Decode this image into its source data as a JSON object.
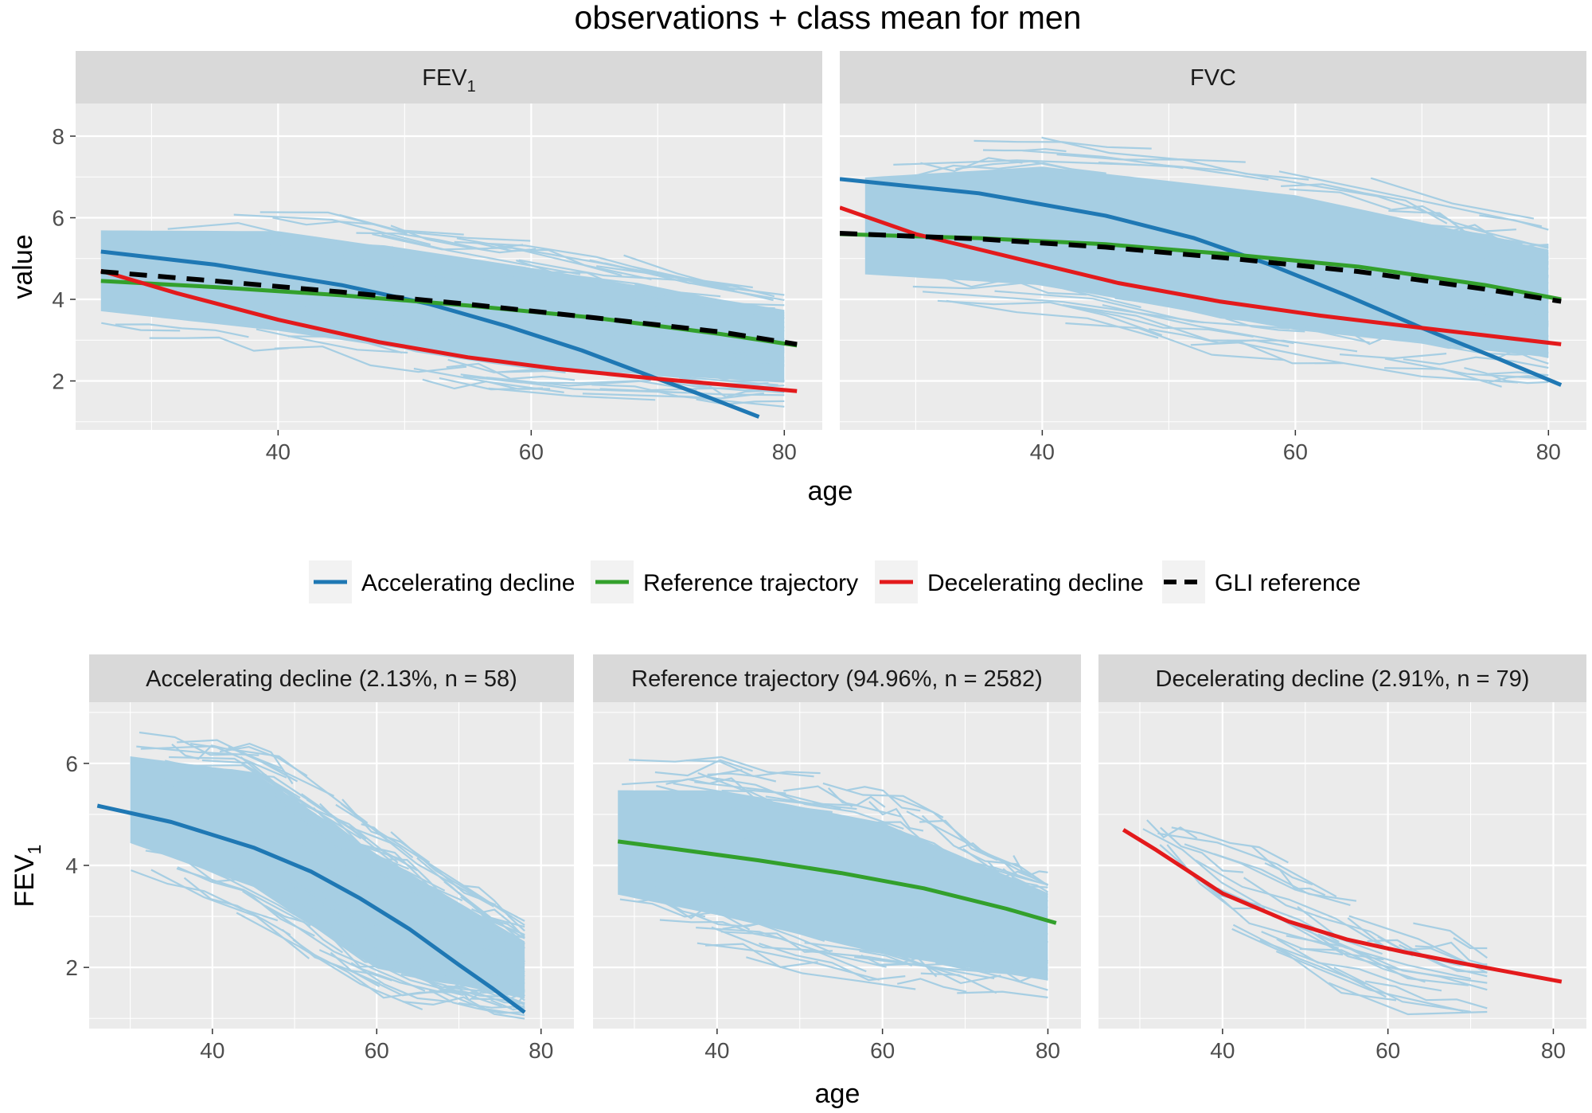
{
  "figure_title": "observations + class mean for men",
  "colors": {
    "observation": "#a6cee3",
    "accelerating": "#1f78b4",
    "reference": "#33a02c",
    "decelerating": "#e31a1c",
    "gli": "#000000",
    "panel_background": "#ebebeb",
    "strip_background": "#d9d9d9",
    "grid": "#ffffff"
  },
  "legend": [
    {
      "key": "accelerating",
      "label": "Accelerating decline",
      "style": "solid"
    },
    {
      "key": "reference",
      "label": "Reference trajectory",
      "style": "solid"
    },
    {
      "key": "decelerating",
      "label": "Decelerating decline",
      "style": "solid"
    },
    {
      "key": "gli",
      "label": "GLI reference",
      "style": "dashed"
    }
  ],
  "chart_data": [
    {
      "type": "line",
      "title": "observations + class mean for men",
      "xlabel": "age",
      "ylabel": "value",
      "facets": [
        {
          "strip": "FEV",
          "strip_subscript": "1",
          "xlim": [
            24,
            83
          ],
          "ylim": [
            0.8,
            8.8
          ],
          "xticks": [
            40,
            60,
            80
          ],
          "yticks": [
            2,
            4,
            6,
            8
          ],
          "observations": {
            "band_lower": [
              [
                26,
                3.2
              ],
              [
                40,
                2.6
              ],
              [
                60,
                1.7
              ],
              [
                80,
                1.5
              ]
            ],
            "band_upper": [
              [
                26,
                6.2
              ],
              [
                40,
                6.3
              ],
              [
                60,
                5.4
              ],
              [
                80,
                4.2
              ]
            ]
          },
          "series": [
            {
              "key": "accelerating",
              "name": "Accelerating decline",
              "x": [
                26,
                35,
                45,
                52,
                58,
                64,
                70,
                74,
                78
              ],
              "y": [
                5.17,
                4.85,
                4.35,
                3.88,
                3.35,
                2.75,
                2.05,
                1.6,
                1.12
              ]
            },
            {
              "key": "reference",
              "name": "Reference trajectory",
              "x": [
                26,
                35,
                45,
                55,
                65,
                75,
                81
              ],
              "y": [
                4.45,
                4.3,
                4.1,
                3.85,
                3.55,
                3.15,
                2.87
              ]
            },
            {
              "key": "decelerating",
              "name": "Decelerating decline",
              "x": [
                26,
                32,
                40,
                48,
                55,
                62,
                70,
                81
              ],
              "y": [
                4.7,
                4.15,
                3.5,
                2.95,
                2.58,
                2.3,
                2.05,
                1.75
              ]
            },
            {
              "key": "gli",
              "name": "GLI reference",
              "x": [
                26,
                35,
                45,
                55,
                65,
                75,
                81
              ],
              "y": [
                4.68,
                4.45,
                4.18,
                3.88,
                3.55,
                3.2,
                2.9
              ]
            }
          ]
        },
        {
          "strip": "FVC",
          "strip_subscript": "",
          "xlim": [
            24,
            83
          ],
          "ylim": [
            0.8,
            8.8
          ],
          "xticks": [
            40,
            60,
            80
          ],
          "yticks": [
            2,
            4,
            6,
            8
          ],
          "observations": {
            "band_lower": [
              [
                26,
                4.0
              ],
              [
                40,
                3.6
              ],
              [
                60,
                2.4
              ],
              [
                80,
                1.9
              ]
            ],
            "band_upper": [
              [
                26,
                7.6
              ],
              [
                40,
                8.0
              ],
              [
                60,
                7.4
              ],
              [
                80,
                5.9
              ]
            ]
          },
          "series": [
            {
              "key": "accelerating",
              "name": "Accelerating decline",
              "x": [
                24,
                35,
                45,
                52,
                58,
                64,
                70,
                76,
                81
              ],
              "y": [
                6.95,
                6.6,
                6.05,
                5.5,
                4.85,
                4.1,
                3.3,
                2.55,
                1.9
              ]
            },
            {
              "key": "reference",
              "name": "Reference trajectory",
              "x": [
                24,
                35,
                45,
                55,
                65,
                75,
                81
              ],
              "y": [
                5.6,
                5.5,
                5.35,
                5.1,
                4.8,
                4.35,
                4.0
              ]
            },
            {
              "key": "decelerating",
              "name": "Decelerating decline",
              "x": [
                24,
                30,
                38,
                46,
                54,
                62,
                70,
                81
              ],
              "y": [
                6.25,
                5.6,
                5.0,
                4.4,
                3.95,
                3.6,
                3.3,
                2.9
              ]
            },
            {
              "key": "gli",
              "name": "GLI reference",
              "x": [
                24,
                35,
                45,
                55,
                65,
                75,
                81
              ],
              "y": [
                5.62,
                5.48,
                5.28,
                5.0,
                4.68,
                4.25,
                3.95
              ]
            }
          ]
        }
      ]
    },
    {
      "type": "line",
      "xlabel": "age",
      "ylabel": "FEV",
      "ylabel_subscript": "1",
      "facets": [
        {
          "strip": "Accelerating decline (2.13%, n = 58)",
          "xlim": [
            25,
            84
          ],
          "ylim": [
            0.8,
            7.2
          ],
          "xticks": [
            40,
            60,
            80
          ],
          "yticks": [
            2,
            4,
            6
          ],
          "observations": {
            "band_lower": [
              [
                30,
                4.0
              ],
              [
                45,
                3.0
              ],
              [
                60,
                1.4
              ],
              [
                78,
                1.1
              ]
            ],
            "band_upper": [
              [
                28,
                6.6
              ],
              [
                45,
                6.4
              ],
              [
                60,
                4.8
              ],
              [
                78,
                2.8
              ]
            ]
          },
          "series": [
            {
              "key": "accelerating",
              "name": "Accelerating decline",
              "x": [
                26,
                35,
                45,
                52,
                58,
                64,
                70,
                74,
                78
              ],
              "y": [
                5.17,
                4.85,
                4.35,
                3.88,
                3.35,
                2.75,
                2.05,
                1.6,
                1.12
              ]
            }
          ]
        },
        {
          "strip": "Reference trajectory (94.96%, n = 2582)",
          "xlim": [
            25,
            84
          ],
          "ylim": [
            0.8,
            7.2
          ],
          "xticks": [
            40,
            60,
            80
          ],
          "yticks": [
            2,
            4,
            6
          ],
          "observations": {
            "band_lower": [
              [
                28,
                2.9
              ],
              [
                40,
                2.4
              ],
              [
                60,
                1.6
              ],
              [
                80,
                1.3
              ]
            ],
            "band_upper": [
              [
                28,
                6.0
              ],
              [
                40,
                6.1
              ],
              [
                60,
                5.5
              ],
              [
                80,
                3.9
              ]
            ]
          },
          "series": [
            {
              "key": "reference",
              "name": "Reference trajectory",
              "x": [
                28,
                35,
                45,
                55,
                65,
                75,
                81
              ],
              "y": [
                4.47,
                4.32,
                4.1,
                3.85,
                3.55,
                3.15,
                2.87
              ]
            }
          ]
        },
        {
          "strip": "Decelerating decline (2.91%, n = 79)",
          "xlim": [
            25,
            84
          ],
          "ylim": [
            0.8,
            7.2
          ],
          "xticks": [
            40,
            60,
            80
          ],
          "yticks": [
            2,
            4,
            6
          ],
          "observations": {
            "band_lower": [
              [
                30,
                4.6
              ],
              [
                40,
                2.6
              ],
              [
                60,
                1.2
              ],
              [
                72,
                1.0
              ]
            ],
            "band_upper": [
              [
                30,
                4.8
              ],
              [
                40,
                4.6
              ],
              [
                60,
                3.1
              ],
              [
                72,
                2.4
              ]
            ]
          },
          "series": [
            {
              "key": "decelerating",
              "name": "Decelerating decline",
              "x": [
                28,
                32,
                40,
                48,
                55,
                62,
                70,
                81
              ],
              "y": [
                4.7,
                4.3,
                3.45,
                2.9,
                2.55,
                2.3,
                2.05,
                1.72
              ]
            }
          ]
        }
      ]
    }
  ]
}
